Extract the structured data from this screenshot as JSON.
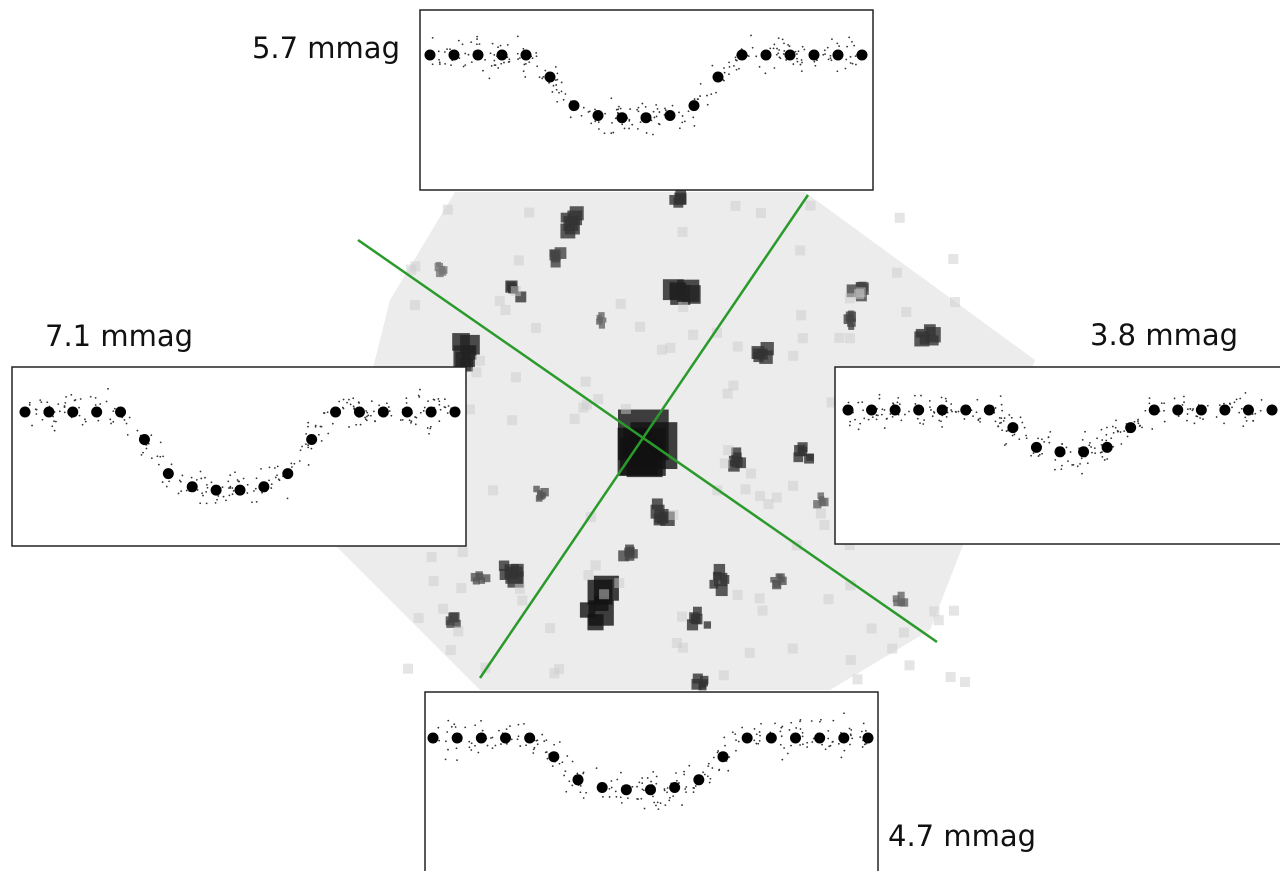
{
  "panels": [
    {
      "label": "5.7 mmag",
      "binned": [
        0,
        0,
        0,
        0,
        0,
        2.0,
        4.6,
        5.5,
        5.7,
        5.7,
        5.5,
        4.6,
        2.0,
        0,
        0,
        0,
        0,
        0,
        0
      ]
    },
    {
      "label": "7.1 mmag",
      "binned": [
        0,
        0,
        0,
        0,
        0,
        2.5,
        5.6,
        6.8,
        7.1,
        7.1,
        6.8,
        5.6,
        2.5,
        0,
        0,
        0,
        0,
        0,
        0
      ]
    },
    {
      "label": "3.8 mmag",
      "binned": [
        0,
        0,
        0,
        0,
        0,
        0,
        0,
        1.6,
        3.4,
        3.8,
        3.8,
        3.4,
        1.6,
        0,
        0,
        0,
        0,
        0,
        0
      ]
    },
    {
      "label": "4.7 mmag",
      "binned": [
        0,
        0,
        0,
        0,
        0,
        1.7,
        3.8,
        4.5,
        4.7,
        4.7,
        4.5,
        3.8,
        1.7,
        0,
        0,
        0,
        0,
        0,
        0
      ]
    }
  ]
}
